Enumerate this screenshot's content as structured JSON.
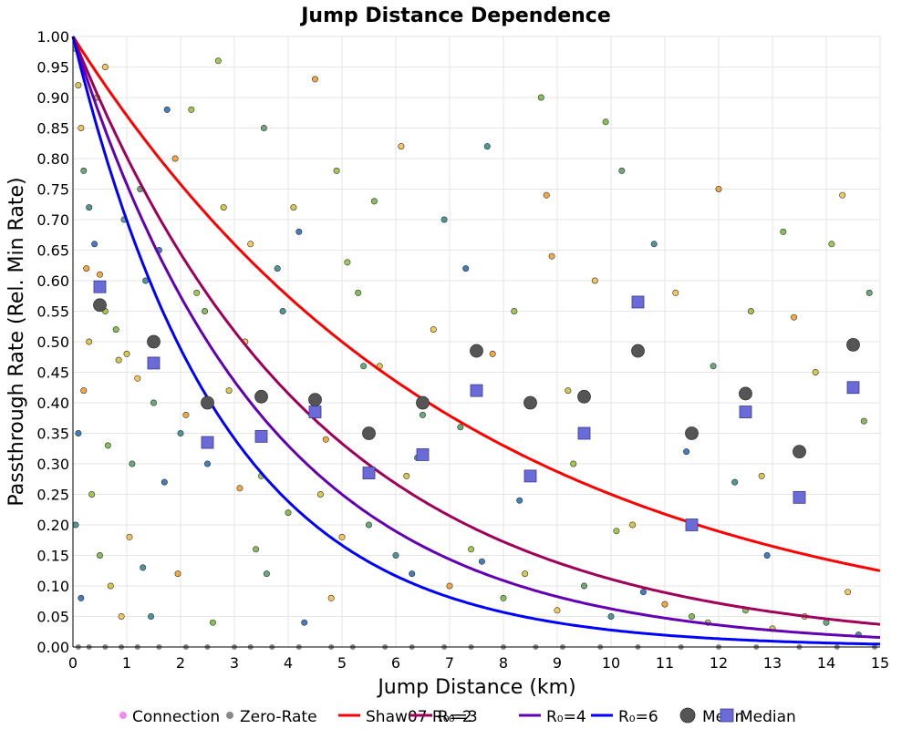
{
  "chart_data": {
    "type": "scatter",
    "title": "Jump Distance Dependence",
    "xlabel": "Jump Distance (km)",
    "ylabel": "Passthrough Rate (Rel. Min Rate)",
    "xlim": [
      0,
      15
    ],
    "ylim": [
      0,
      1
    ],
    "grid": true,
    "x_ticks": [
      "0",
      "1",
      "2",
      "3",
      "4",
      "5",
      "6",
      "7",
      "8",
      "9",
      "10",
      "11",
      "12",
      "13",
      "14",
      "15"
    ],
    "y_ticks": [
      "0.00",
      "0.05",
      "0.10",
      "0.15",
      "0.20",
      "0.25",
      "0.30",
      "0.35",
      "0.40",
      "0.45",
      "0.50",
      "0.55",
      "0.60",
      "0.65",
      "0.70",
      "0.75",
      "0.80",
      "0.85",
      "0.90",
      "0.95",
      "1.00"
    ],
    "legend_position": "bottom",
    "colors": {
      "connection": "#f08cf0",
      "zero_rate": "#888888",
      "r0_2": "#ff0000",
      "r0_3": "#a0005a",
      "r0_4": "#6400b4",
      "r0_6": "#0000ff",
      "mean": "#555555",
      "median": "#6a6ad8",
      "point_palette": [
        "#7ab648",
        "#d4c23a",
        "#f2c14e",
        "#5b9e6e",
        "#3c8c8c",
        "#2f6fb5",
        "#f0a030",
        "#9ac23c"
      ]
    },
    "legend": [
      {
        "key": "connection",
        "label": "Connection"
      },
      {
        "key": "zero_rate",
        "label": "Zero-Rate"
      },
      {
        "key": "r0_2",
        "label": "Shaw07 R₀=2"
      },
      {
        "key": "r0_3",
        "label": "R₀=3"
      },
      {
        "key": "r0_4",
        "label": "R₀=4"
      },
      {
        "key": "r0_6",
        "label": "R₀=6"
      },
      {
        "key": "mean",
        "label": "Mean"
      },
      {
        "key": "median",
        "label": "Median"
      }
    ],
    "curves": [
      {
        "name": "Shaw07 R₀=2",
        "key": "r0_2",
        "r0": 2
      },
      {
        "name": "R₀=3",
        "key": "r0_3",
        "r0": 3
      },
      {
        "name": "R₀=4",
        "key": "r0_4",
        "r0": 4
      },
      {
        "name": "R₀=6",
        "key": "r0_6",
        "r0": 6
      }
    ],
    "mean": {
      "x": [
        0.5,
        1.5,
        2.5,
        3.5,
        4.5,
        5.5,
        6.5,
        7.5,
        8.5,
        9.5,
        10.5,
        11.5,
        12.5,
        13.5,
        14.5
      ],
      "y": [
        0.56,
        0.5,
        0.4,
        0.41,
        0.405,
        0.35,
        0.4,
        0.485,
        0.4,
        0.41,
        0.485,
        0.35,
        0.415,
        0.32,
        0.495
      ]
    },
    "median": {
      "x": [
        0.5,
        1.5,
        2.5,
        3.5,
        4.5,
        5.5,
        6.5,
        7.5,
        8.5,
        9.5,
        10.5,
        11.5,
        12.5,
        13.5,
        14.5
      ],
      "y": [
        0.59,
        0.465,
        0.335,
        0.345,
        0.385,
        0.285,
        0.315,
        0.42,
        0.28,
        0.35,
        0.565,
        0.2,
        0.385,
        0.245,
        0.425
      ]
    },
    "connection_points": {
      "x": [
        0.05,
        0.1,
        0.15,
        0.2,
        0.3,
        0.4,
        0.5,
        0.6,
        0.8,
        1.0,
        1.2,
        1.5,
        2.0,
        2.5,
        3.1,
        3.5,
        4.0,
        4.6,
        5.0,
        5.5,
        6.0,
        6.3,
        7.0,
        7.4,
        8.0,
        8.4,
        9.0,
        9.5,
        10.0,
        10.6,
        11.0,
        11.8,
        12.5,
        13.0,
        13.6,
        14.0,
        14.6,
        0.1,
        0.2,
        0.35,
        0.5,
        0.7,
        0.9,
        1.1,
        1.35,
        1.6,
        1.9,
        2.2,
        2.45,
        2.8,
        3.2,
        3.55,
        3.8,
        4.2,
        4.5,
        4.9,
        5.3,
        5.7,
        6.1,
        6.5,
        6.9,
        7.3,
        7.8,
        8.2,
        8.7,
        9.2,
        9.7,
        10.2,
        10.8,
        11.4,
        12.0,
        12.6,
        13.2,
        13.8,
        14.3,
        14.8,
        0.05,
        0.15,
        0.25,
        0.45,
        0.65,
        0.85,
        1.05,
        1.25,
        1.45,
        1.7,
        1.95,
        2.3,
        2.6,
        2.9,
        3.3,
        3.6,
        3.9,
        4.3,
        4.7,
        5.1,
        5.6,
        6.2,
        6.7,
        7.2,
        7.7,
        8.3,
        8.8,
        9.3,
        9.9,
        10.4,
        11.2,
        11.9,
        12.3,
        12.9,
        13.4,
        14.1,
        14.7,
        0.3,
        0.6,
        0.95,
        1.3,
        1.75,
        2.1,
        2.7,
        3.4,
        4.1,
        4.8,
        5.4,
        6.4,
        7.6,
        8.9,
        10.1,
        11.5,
        12.8,
        14.4
      ],
      "y": [
        0.98,
        0.92,
        0.85,
        0.78,
        0.72,
        0.66,
        0.61,
        0.55,
        0.52,
        0.48,
        0.44,
        0.4,
        0.35,
        0.3,
        0.26,
        0.28,
        0.22,
        0.25,
        0.18,
        0.2,
        0.15,
        0.12,
        0.1,
        0.16,
        0.08,
        0.12,
        0.06,
        0.1,
        0.05,
        0.09,
        0.07,
        0.04,
        0.06,
        0.03,
        0.05,
        0.04,
        0.02,
        0.35,
        0.42,
        0.25,
        0.15,
        0.1,
        0.05,
        0.3,
        0.6,
        0.65,
        0.8,
        0.88,
        0.55,
        0.72,
        0.5,
        0.85,
        0.62,
        0.68,
        0.93,
        0.78,
        0.58,
        0.46,
        0.82,
        0.38,
        0.7,
        0.62,
        0.48,
        0.55,
        0.9,
        0.42,
        0.6,
        0.78,
        0.66,
        0.32,
        0.75,
        0.55,
        0.68,
        0.45,
        0.74,
        0.58,
        0.2,
        0.08,
        0.62,
        0.9,
        0.33,
        0.47,
        0.18,
        0.75,
        0.05,
        0.27,
        0.12,
        0.58,
        0.04,
        0.42,
        0.66,
        0.12,
        0.55,
        0.04,
        0.34,
        0.63,
        0.73,
        0.28,
        0.52,
        0.36,
        0.82,
        0.24,
        0.74,
        0.3,
        0.86,
        0.2,
        0.58,
        0.46,
        0.27,
        0.15,
        0.54,
        0.66,
        0.37,
        0.5,
        0.95,
        0.7,
        0.13,
        0.88,
        0.38,
        0.96,
        0.16,
        0.72,
        0.08,
        0.46,
        0.31,
        0.14,
        0.64,
        0.19,
        0.05,
        0.28,
        0.09
      ]
    },
    "zero_rate_points": {
      "x": [
        0.1,
        0.3,
        0.6,
        0.9,
        1.2,
        1.6,
        2.1,
        2.5,
        3.0,
        3.3,
        3.7,
        4.2,
        4.8,
        5.2,
        5.8,
        6.3,
        6.9,
        7.4,
        8.0,
        8.6,
        9.1,
        9.8,
        10.5,
        11.3,
        12.0,
        12.7,
        13.5,
        14.2,
        14.9
      ],
      "y": [
        0,
        0,
        0,
        0,
        0,
        0,
        0,
        0,
        0,
        0,
        0,
        0,
        0,
        0,
        0,
        0,
        0,
        0,
        0,
        0,
        0,
        0,
        0,
        0,
        0,
        0,
        0,
        0,
        0
      ]
    }
  }
}
